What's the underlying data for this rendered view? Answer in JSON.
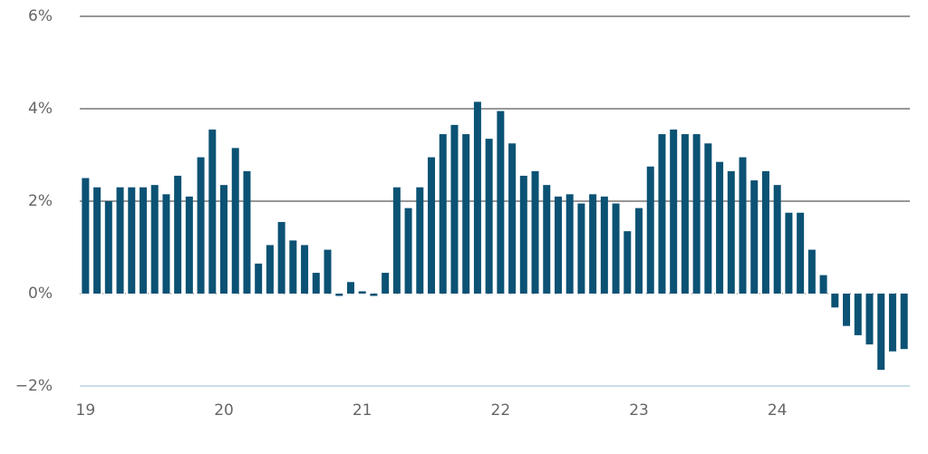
{
  "chart_data": {
    "type": "bar",
    "categories": [
      "19",
      null,
      null,
      null,
      null,
      null,
      null,
      null,
      null,
      null,
      null,
      null,
      "20",
      null,
      null,
      null,
      null,
      null,
      null,
      null,
      null,
      null,
      null,
      null,
      "21",
      null,
      null,
      null,
      null,
      null,
      null,
      null,
      null,
      null,
      null,
      null,
      "22",
      null,
      null,
      null,
      null,
      null,
      null,
      null,
      null,
      null,
      null,
      null,
      "23",
      null,
      null,
      null,
      null,
      null,
      null,
      null,
      null,
      null,
      null,
      null,
      "24",
      null,
      null,
      null,
      null,
      null,
      null,
      null,
      null,
      null,
      null,
      null
    ],
    "values": [
      2.5,
      2.3,
      2.0,
      2.3,
      2.3,
      2.3,
      2.35,
      2.15,
      2.55,
      2.1,
      2.95,
      3.55,
      2.35,
      3.15,
      2.65,
      0.65,
      1.05,
      1.55,
      1.15,
      1.05,
      0.45,
      0.95,
      -0.05,
      0.25,
      0.05,
      -0.05,
      0.45,
      2.3,
      1.85,
      2.3,
      2.95,
      3.45,
      3.65,
      3.45,
      4.15,
      3.35,
      3.95,
      3.25,
      2.55,
      2.65,
      2.35,
      2.1,
      2.15,
      1.95,
      2.15,
      2.1,
      1.95,
      1.35,
      1.85,
      2.75,
      3.45,
      3.55,
      3.45,
      3.45,
      3.25,
      2.85,
      2.65,
      2.95,
      2.45,
      2.65,
      2.35,
      1.75,
      1.75,
      0.95,
      0.4,
      -0.3,
      -0.7,
      -0.9,
      -1.1,
      -1.65,
      -1.25,
      -1.2
    ],
    "color": "#0b5274",
    "ylim": [
      -2,
      6
    ],
    "yticks": [
      {
        "value": -2,
        "label": "−2%"
      },
      {
        "value": 0,
        "label": "0%"
      },
      {
        "value": 2,
        "label": "2%"
      },
      {
        "value": 4,
        "label": "4%"
      },
      {
        "value": 6,
        "label": "6%"
      }
    ],
    "grid": true
  }
}
